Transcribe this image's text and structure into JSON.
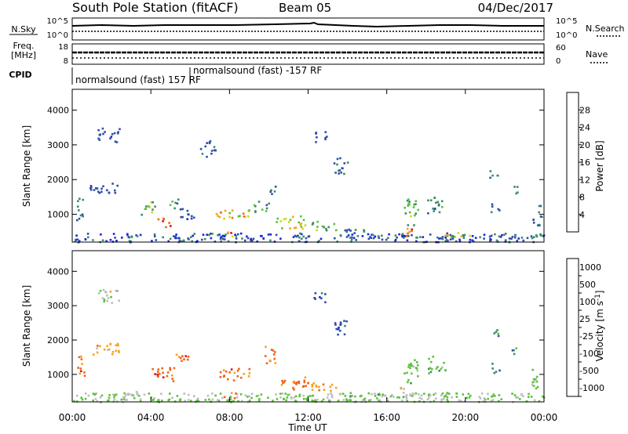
{
  "header": {
    "station": "South Pole Station (fitACF)",
    "beam": "Beam 05",
    "date": "04/Dec/2017"
  },
  "nsky_panel": {
    "label": "N.Sky",
    "left_ticks": [
      "10^5",
      "10^0"
    ],
    "right_ticks": [
      "10^5",
      "10^0"
    ],
    "right_label": "N.Search"
  },
  "freq_panel": {
    "label_line1": "Freq.",
    "label_line2": "[MHz]",
    "left_ticks": [
      "18",
      "8"
    ],
    "right_ticks": [
      "60",
      "0"
    ],
    "right_label": "Nave"
  },
  "cpid_panel": {
    "label": "CPID",
    "programs": [
      {
        "text": "normalsound (fast) 157 RF",
        "start_hour": 0.0
      },
      {
        "text": "normalsound (fast) -157 RF",
        "start_hour": 6.0
      }
    ]
  },
  "colors": {
    "power": [
      "#1a24e0",
      "#2e4fa6",
      "#3f8a66",
      "#56c23a",
      "#d8d21a",
      "#f5a21e",
      "#f06a14",
      "#e01010"
    ],
    "velocity": [
      "#e01010",
      "#f0641a",
      "#f5a21e",
      "#bdbdbd",
      "#5cc23a",
      "#3f8a66",
      "#2e4fa6",
      "#1a24e0"
    ]
  },
  "chart_data": [
    {
      "type": "heatmap",
      "name": "power-panel",
      "xlabel": "",
      "ylabel": "Slant Range [km]",
      "ylim": [
        200,
        4600
      ],
      "yticks": [
        1000,
        2000,
        3000,
        4000
      ],
      "colorbar": {
        "label": "Power [dB]",
        "ticks": [
          "4",
          "8",
          "12",
          "16",
          "20",
          "24",
          "28"
        ],
        "range": [
          0,
          32
        ]
      },
      "blobs": [
        {
          "t": 0.4,
          "r": 1200,
          "dt": 0.4,
          "dr": 700,
          "value": 10
        },
        {
          "t": 1.6,
          "r": 1750,
          "dt": 1.5,
          "dr": 350,
          "value": 6
        },
        {
          "t": 1.8,
          "r": 3300,
          "dt": 1.2,
          "dr": 400,
          "value": 6
        },
        {
          "t": 3.8,
          "r": 1200,
          "dt": 0.8,
          "dr": 400,
          "value": 14
        },
        {
          "t": 4.6,
          "r": 850,
          "dt": 0.6,
          "dr": 230,
          "value": 26
        },
        {
          "t": 4.9,
          "r": 700,
          "dt": 0.4,
          "dr": 140,
          "value": 30
        },
        {
          "t": 5.1,
          "r": 1350,
          "dt": 0.6,
          "dr": 300,
          "value": 12
        },
        {
          "t": 5.8,
          "r": 1000,
          "dt": 0.8,
          "dr": 400,
          "value": 6
        },
        {
          "t": 6.9,
          "r": 2900,
          "dt": 0.8,
          "dr": 500,
          "value": 7
        },
        {
          "t": 7.7,
          "r": 1000,
          "dt": 0.9,
          "dr": 350,
          "value": 22
        },
        {
          "t": 8.7,
          "r": 1000,
          "dt": 0.7,
          "dr": 330,
          "value": 20
        },
        {
          "t": 8.0,
          "r": 420,
          "dt": 0.6,
          "dr": 180,
          "value": 28
        },
        {
          "t": 9.6,
          "r": 1250,
          "dt": 0.8,
          "dr": 350,
          "value": 12
        },
        {
          "t": 10.2,
          "r": 1750,
          "dt": 0.5,
          "dr": 300,
          "value": 8
        },
        {
          "t": 11.1,
          "r": 800,
          "dt": 1.5,
          "dr": 380,
          "value": 18
        },
        {
          "t": 12.8,
          "r": 700,
          "dt": 1.3,
          "dr": 280,
          "value": 14
        },
        {
          "t": 12.6,
          "r": 3250,
          "dt": 0.7,
          "dr": 300,
          "value": 6
        },
        {
          "t": 13.6,
          "r": 2400,
          "dt": 0.8,
          "dr": 500,
          "value": 7
        },
        {
          "t": 14.5,
          "r": 500,
          "dt": 1.5,
          "dr": 200,
          "value": 10
        },
        {
          "t": 17.2,
          "r": 1100,
          "dt": 0.7,
          "dr": 800,
          "value": 14
        },
        {
          "t": 17.0,
          "r": 500,
          "dt": 0.7,
          "dr": 230,
          "value": 26
        },
        {
          "t": 18.5,
          "r": 1300,
          "dt": 0.9,
          "dr": 500,
          "value": 10
        },
        {
          "t": 19.5,
          "r": 430,
          "dt": 1.5,
          "dr": 130,
          "value": 20
        },
        {
          "t": 21.4,
          "r": 2200,
          "dt": 0.5,
          "dr": 300,
          "value": 10
        },
        {
          "t": 21.5,
          "r": 1200,
          "dt": 0.5,
          "dr": 300,
          "value": 9
        },
        {
          "t": 22.5,
          "r": 1700,
          "dt": 0.4,
          "dr": 300,
          "value": 12
        },
        {
          "t": 23.6,
          "r": 1000,
          "dt": 0.5,
          "dr": 600,
          "value": 8
        }
      ]
    },
    {
      "type": "heatmap",
      "name": "velocity-panel",
      "xlabel": "Time UT",
      "ylabel": "Slant Range [km]",
      "ylim": [
        200,
        4600
      ],
      "yticks": [
        1000,
        2000,
        3000,
        4000
      ],
      "xticks": [
        "00:00",
        "04:00",
        "08:00",
        "12:00",
        "16:00",
        "20:00",
        "00:00"
      ],
      "colorbar": {
        "label": "Velocity [m s^-1]",
        "ticks": [
          "1000",
          "500",
          "100",
          "25",
          "-25",
          "-100",
          "-500",
          "-1000"
        ]
      },
      "blobs": [
        {
          "t": 0.4,
          "r": 1200,
          "dt": 0.4,
          "dr": 700,
          "value": 1
        },
        {
          "t": 1.6,
          "r": 1750,
          "dt": 1.5,
          "dr": 350,
          "value": 2
        },
        {
          "t": 1.8,
          "r": 3300,
          "dt": 1.2,
          "dr": 400,
          "value": 3
        },
        {
          "t": 2.8,
          "r": 500,
          "dt": 1.2,
          "dr": 150,
          "value": 3
        },
        {
          "t": 4.6,
          "r": 1000,
          "dt": 1.2,
          "dr": 450,
          "value": 1
        },
        {
          "t": 5.5,
          "r": 1500,
          "dt": 0.8,
          "dr": 300,
          "value": 1
        },
        {
          "t": 7.8,
          "r": 1000,
          "dt": 0.9,
          "dr": 350,
          "value": 1
        },
        {
          "t": 8.7,
          "r": 1050,
          "dt": 0.7,
          "dr": 330,
          "value": 1
        },
        {
          "t": 8.0,
          "r": 420,
          "dt": 0.6,
          "dr": 180,
          "value": 1
        },
        {
          "t": 10.0,
          "r": 1600,
          "dt": 0.6,
          "dr": 500,
          "value": 1
        },
        {
          "t": 11.2,
          "r": 750,
          "dt": 1.6,
          "dr": 380,
          "value": 1
        },
        {
          "t": 12.8,
          "r": 700,
          "dt": 1.3,
          "dr": 300,
          "value": 2
        },
        {
          "t": 12.6,
          "r": 3250,
          "dt": 0.7,
          "dr": 300,
          "value": 6
        },
        {
          "t": 13.6,
          "r": 2400,
          "dt": 0.8,
          "dr": 500,
          "value": 6
        },
        {
          "t": 15.0,
          "r": 430,
          "dt": 2.0,
          "dr": 120,
          "value": 4
        },
        {
          "t": 17.2,
          "r": 1100,
          "dt": 0.7,
          "dr": 800,
          "value": 4
        },
        {
          "t": 17.0,
          "r": 550,
          "dt": 0.7,
          "dr": 230,
          "value": 3
        },
        {
          "t": 18.5,
          "r": 1300,
          "dt": 0.9,
          "dr": 500,
          "value": 4
        },
        {
          "t": 19.5,
          "r": 430,
          "dt": 1.5,
          "dr": 130,
          "value": 4
        },
        {
          "t": 21.4,
          "r": 2200,
          "dt": 0.5,
          "dr": 300,
          "value": 5
        },
        {
          "t": 21.5,
          "r": 1200,
          "dt": 0.5,
          "dr": 300,
          "value": 5
        },
        {
          "t": 22.5,
          "r": 1700,
          "dt": 0.4,
          "dr": 300,
          "value": 5
        },
        {
          "t": 23.6,
          "r": 900,
          "dt": 0.5,
          "dr": 600,
          "value": 4
        },
        {
          "t": 10.0,
          "r": 270,
          "dt": 12.0,
          "dr": 80,
          "value": 4
        }
      ]
    }
  ]
}
